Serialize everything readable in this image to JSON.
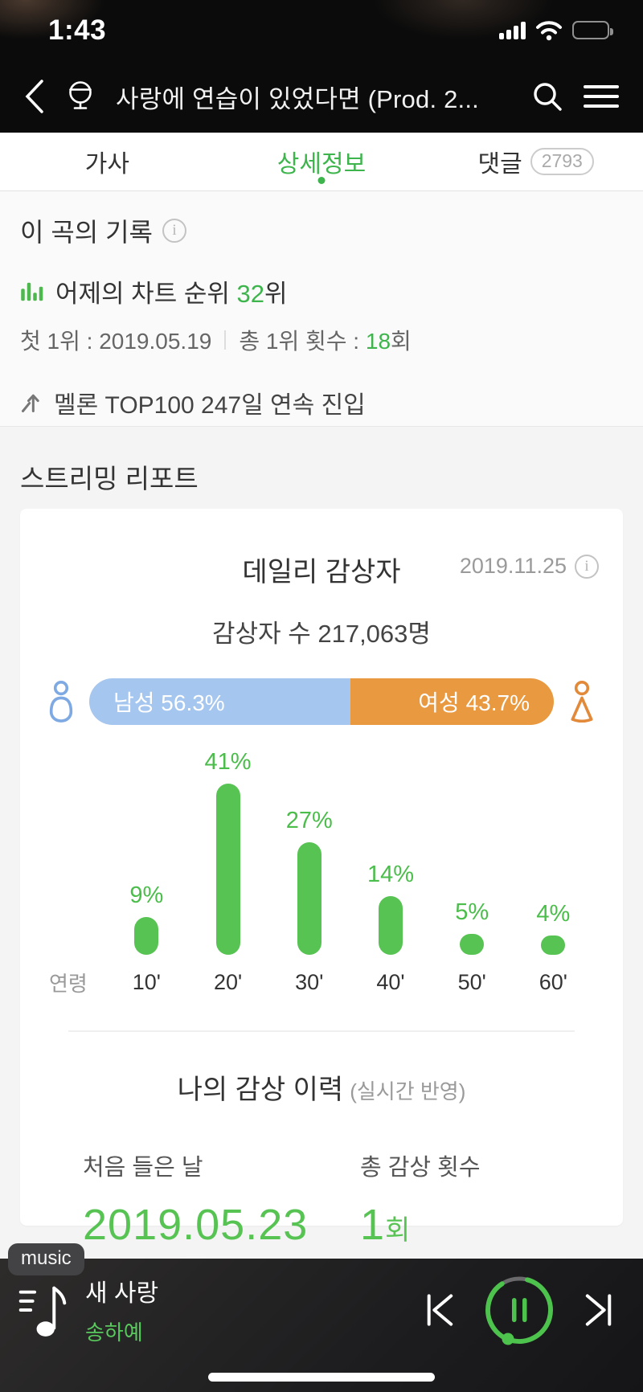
{
  "status_bar": {
    "time": "1:43"
  },
  "header": {
    "title": "사랑에 연습이 있었다면 (Prod. 2..."
  },
  "tabs": {
    "lyrics": "가사",
    "details": "상세정보",
    "comments": "댓글",
    "comments_count": "2793"
  },
  "record": {
    "heading": "이 곡의 기록",
    "rank_prefix": "어제의 차트 순위 ",
    "rank_value": "32",
    "rank_suffix": "위",
    "first_no1_label": "첫 1위 : ",
    "first_no1_date": "2019.05.19",
    "total_no1_label": "총 1위 횟수 : ",
    "total_no1_value": "18",
    "total_no1_suffix": "회",
    "top100_text": "멜론 TOP100 247일 연속 진입"
  },
  "streaming": {
    "heading": "스트리밍 리포트",
    "card_title": "데일리 감상자",
    "date": "2019.11.25",
    "listeners_text": "감상자 수 217,063명",
    "gender": {
      "male_label": "남성 56.3%",
      "male_pct": 56.3,
      "female_label": "여성 43.7%",
      "female_pct": 43.7,
      "male_color": "#a5c6ee",
      "female_color": "#e9993f"
    }
  },
  "chart_data": {
    "type": "bar",
    "title": "데일리 감상자 연령 분포",
    "categories": [
      "10'",
      "20'",
      "30'",
      "40'",
      "50'",
      "60'"
    ],
    "values": [
      9,
      41,
      27,
      14,
      5,
      4
    ],
    "value_labels": [
      "9%",
      "41%",
      "27%",
      "14%",
      "5%",
      "4%"
    ],
    "xlabel": "연령",
    "ylim": [
      0,
      41
    ],
    "bar_color": "#57c353",
    "legend": "none",
    "grid": false
  },
  "history": {
    "title": "나의 감상 이력",
    "subtitle": "(실시간 반영)",
    "first_listen_label": "처음 들은 날",
    "first_listen_value": "2019.05.23",
    "play_count_label": "총 감상 횟수",
    "play_count_value": "1",
    "play_count_suffix": "회"
  },
  "player": {
    "badge": "music",
    "song_title": "새 사랑",
    "artist": "송하예"
  },
  "colors": {
    "accent_green": "#3db54c",
    "bar_green": "#57c353",
    "male_blue": "#a5c6ee",
    "female_orange": "#e9993f"
  }
}
